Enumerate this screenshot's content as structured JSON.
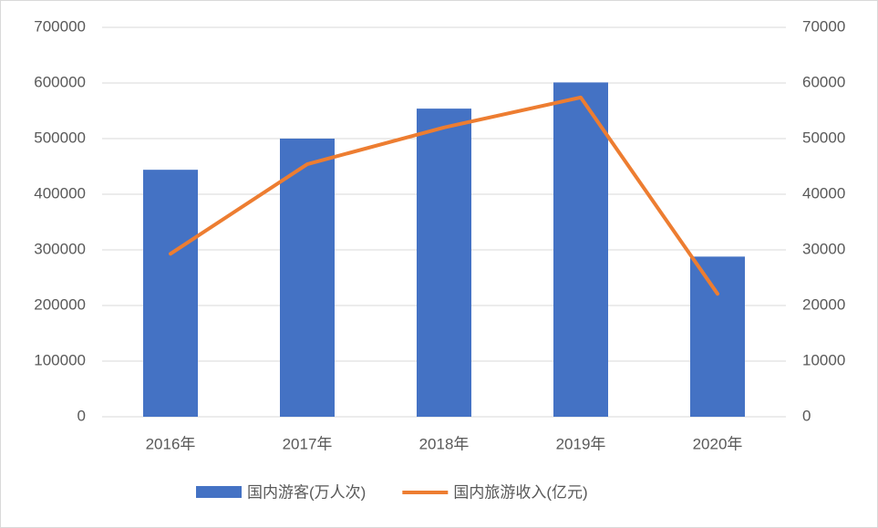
{
  "chart_data": {
    "type": "bar_line",
    "categories": [
      "2016年",
      "2017年",
      "2018年",
      "2019年",
      "2020年"
    ],
    "series": [
      {
        "name": "国内游客(万人次)",
        "type": "bar",
        "color": "#4472c4",
        "values": [
          444000,
          500000,
          553900,
          601000,
          287900
        ]
      },
      {
        "name": "国内旅游收入(亿元)",
        "type": "line",
        "axis": "y2",
        "color": "#ed7d31",
        "values": [
          29300,
          45400,
          52000,
          57400,
          22100
        ]
      }
    ],
    "ylim": [
      0,
      700000
    ],
    "yticks": [
      0,
      100000,
      200000,
      300000,
      400000,
      500000,
      600000,
      700000
    ],
    "y2lim": [
      0,
      70000
    ],
    "y2ticks": [
      0,
      10000,
      20000,
      30000,
      40000,
      50000,
      60000,
      70000
    ],
    "grid": true,
    "legend": "bottom"
  }
}
